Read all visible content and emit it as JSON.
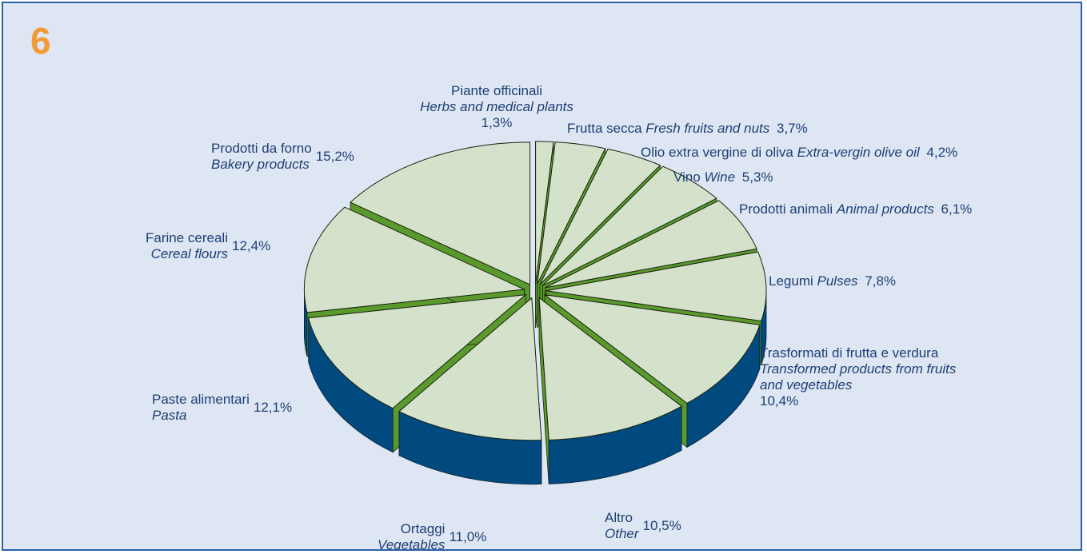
{
  "chart_data": {
    "type": "pie",
    "title": "6",
    "categories": [
      "Piante officinali",
      "Frutta secca",
      "Olio extra vergine di oliva",
      "Vino",
      "Prodotti animali",
      "Legumi",
      "Trasformati di frutta e verdura",
      "Altro",
      "Ortaggi",
      "Paste alimentari",
      "Farine cereali",
      "Prodotti da forno"
    ],
    "categories_en": [
      "Herbs and medical plants",
      "Fresh fruits and nuts",
      "Extra-vergin olive oil",
      "Wine",
      "Animal products",
      "Pulses",
      "Transformed products from fruits and vegetables",
      "Other",
      "Vegetables",
      "Pasta",
      "Cereal flours",
      "Bakery products"
    ],
    "values": [
      1.3,
      3.7,
      4.2,
      5.3,
      6.1,
      7.8,
      10.4,
      10.5,
      11.0,
      12.1,
      12.4,
      15.2
    ],
    "value_labels": [
      "1,3%",
      "3,7%",
      "4,2%",
      "5,3%",
      "6,1%",
      "7,8%",
      "10,4%",
      "10,5%",
      "11,0%",
      "12,1%",
      "12,4%",
      "15,2%"
    ],
    "colors": {
      "top": "#d5e2cb",
      "side": "#5a9a2d",
      "rim": "#004a80"
    }
  }
}
